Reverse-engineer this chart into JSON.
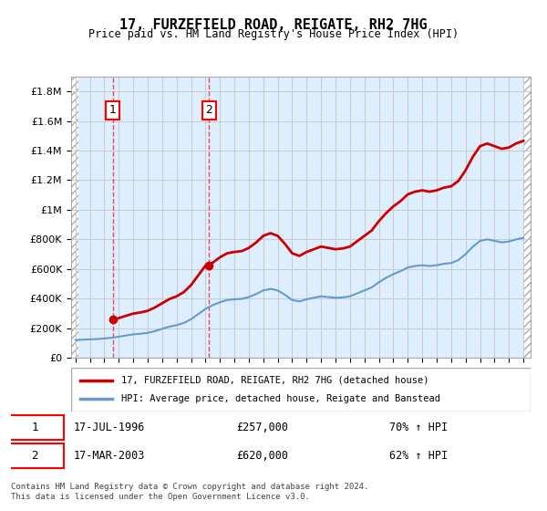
{
  "title": "17, FURZEFIELD ROAD, REIGATE, RH2 7HG",
  "subtitle": "Price paid vs. HM Land Registry's House Price Index (HPI)",
  "legend_line1": "17, FURZEFIELD ROAD, REIGATE, RH2 7HG (detached house)",
  "legend_line2": "HPI: Average price, detached house, Reigate and Banstead",
  "footer": "Contains HM Land Registry data © Crown copyright and database right 2024.\nThis data is licensed under the Open Government Licence v3.0.",
  "sale1_date": "1996-07-17",
  "sale1_label": "17-JUL-1996",
  "sale1_price": 257000,
  "sale1_pct": "70% ↑ HPI",
  "sale2_date": "2003-03-17",
  "sale2_label": "17-MAR-2003",
  "sale2_price": 620000,
  "sale2_pct": "62% ↑ HPI",
  "price_line_color": "#cc0000",
  "hpi_line_color": "#6699cc",
  "sale_marker_color": "#cc0000",
  "ylim": [
    0,
    1900000
  ],
  "yticks": [
    0,
    200000,
    400000,
    600000,
    800000,
    1000000,
    1200000,
    1400000,
    1600000,
    1800000
  ],
  "hatch_color": "#cccccc",
  "grid_color": "#cccccc",
  "bg_color": "#ddeeff"
}
